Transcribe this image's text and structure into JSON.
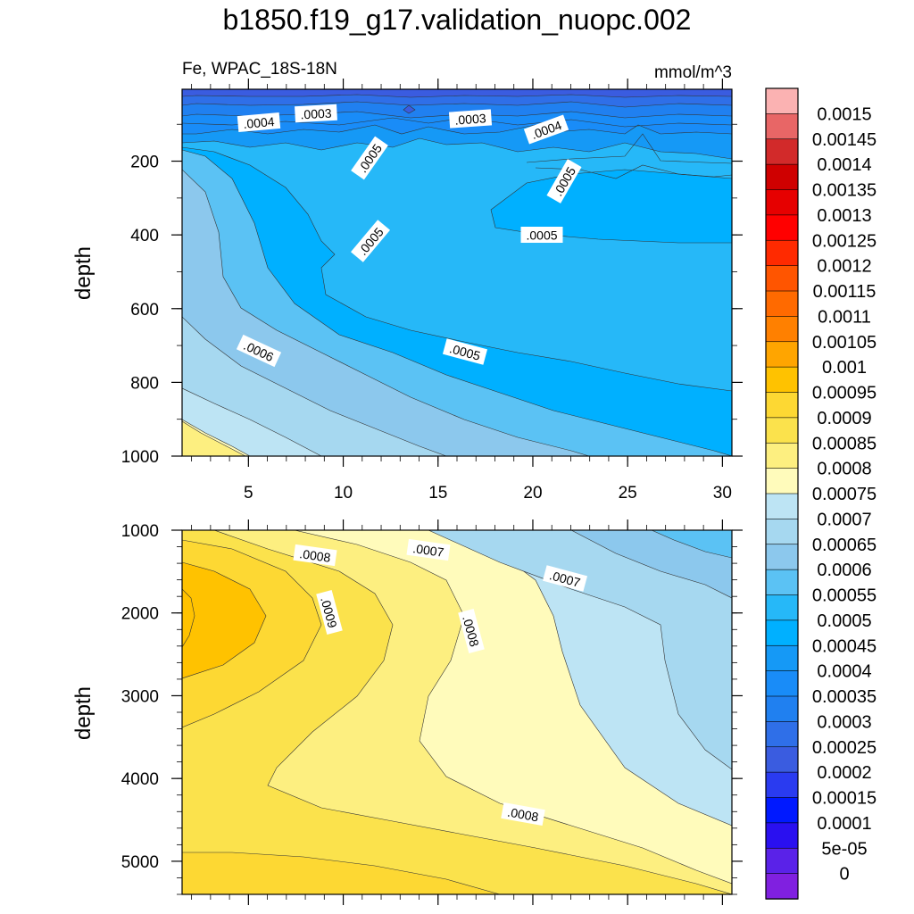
{
  "chart_data": {
    "type": "contour",
    "title": "b1850.f19_g17.validation_nuopc.002",
    "variable_label": "Fe, WPAC_18S-18N",
    "units_label": "mmol/m^3",
    "colorbar_labels": [
      "0.0015",
      "0.00145",
      "0.0014",
      "0.00135",
      "0.0013",
      "0.00125",
      "0.0012",
      "0.00115",
      "0.0011",
      "0.00105",
      "0.001",
      "0.00095",
      "0.0009",
      "0.00085",
      "0.0008",
      "0.00075",
      "0.0007",
      "0.00065",
      "0.0006",
      "0.00055",
      "0.0005",
      "0.00045",
      "0.0004",
      "0.00035",
      "0.0003",
      "0.00025",
      "0.0002",
      "0.00015",
      "0.0001",
      "5e-05",
      "0"
    ],
    "colorbar_colors": [
      "#fbb2b2",
      "#e86666",
      "#d22a2a",
      "#cf0000",
      "#e60000",
      "#ff0000",
      "#ff2a00",
      "#ff5500",
      "#ff6a00",
      "#ff8000",
      "#ffa500",
      "#ffc200",
      "#fdd833",
      "#fbe24c",
      "#fdef80",
      "#fffbbb",
      "#bde4f4",
      "#a6d8f0",
      "#8cc8ed",
      "#5bc2f4",
      "#26b8f8",
      "#00b0ff",
      "#1599f6",
      "#198cf8",
      "#2080f0",
      "#2f6fe8",
      "#3a5ce0",
      "#2a3bf0",
      "#0019ff",
      "#2a10f0",
      "#5a22e8",
      "#8020e0"
    ],
    "panels": [
      {
        "id": "upper",
        "xlim": [
          1.5,
          30.5
        ],
        "ylim": [
          1000,
          5
        ],
        "ylabel": "depth",
        "yticks": [
          "200",
          "400",
          "600",
          "800",
          "1000"
        ],
        "xticks": [
          "5",
          "10",
          "15",
          "20",
          "25",
          "30"
        ],
        "contour_labels": [
          ".0004",
          ".0003",
          ".0003",
          ".0004",
          ".0005",
          ".0005",
          ".0005",
          ".0005",
          ".0006",
          ".0005"
        ]
      },
      {
        "id": "lower",
        "xlim": [
          1.5,
          30.5
        ],
        "ylim": [
          5400,
          1000
        ],
        "ylabel": "depth",
        "yticks": [
          "1000",
          "2000",
          "3000",
          "4000",
          "5000"
        ],
        "contour_labels": [
          ".0008",
          ".0007",
          ".0007",
          ".0009",
          ".0008",
          ".0008"
        ]
      }
    ]
  }
}
